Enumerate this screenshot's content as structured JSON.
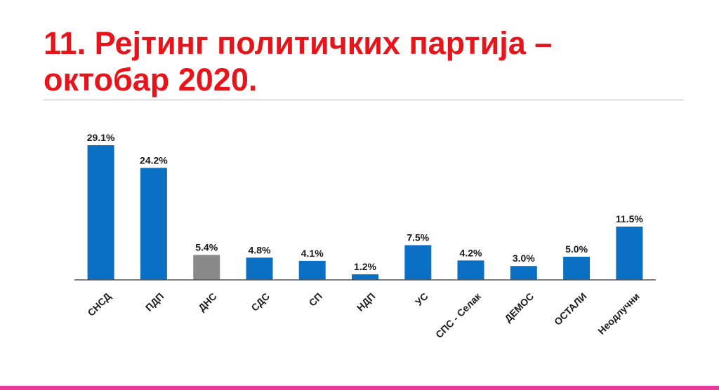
{
  "slide": {
    "title_line1": "11. Рејтинг политичких партија –",
    "title_line2": "октобар 2020."
  },
  "colors": {
    "title": "#e8141b",
    "bar_default": "#0b6fc4",
    "bar_highlight": "#8a8a8a",
    "bottom_bar": "#e93a9b"
  },
  "chart_data": {
    "type": "bar",
    "categories": [
      "СНСД",
      "ПДП",
      "ДНС",
      "СДС",
      "СП",
      "НДП",
      "УС",
      "СПС - Селак",
      "ДЕМОС",
      "ОСТАЛИ",
      "Неодлучни"
    ],
    "values": [
      29.1,
      24.2,
      5.4,
      4.8,
      4.1,
      1.2,
      7.5,
      4.2,
      3.0,
      5.0,
      11.5
    ],
    "value_labels": [
      "29.1%",
      "24.2%",
      "5.4%",
      "4.8%",
      "4.1%",
      "1.2%",
      "7.5%",
      "4.2%",
      "3.0%",
      "5.0%",
      "11.5%"
    ],
    "bar_colors": [
      "#0b6fc4",
      "#0b6fc4",
      "#8a8a8a",
      "#0b6fc4",
      "#0b6fc4",
      "#0b6fc4",
      "#0b6fc4",
      "#0b6fc4",
      "#0b6fc4",
      "#0b6fc4",
      "#0b6fc4"
    ],
    "title": "",
    "xlabel": "",
    "ylabel": "",
    "ylim": [
      0,
      30
    ],
    "grid": false,
    "legend": "none"
  }
}
